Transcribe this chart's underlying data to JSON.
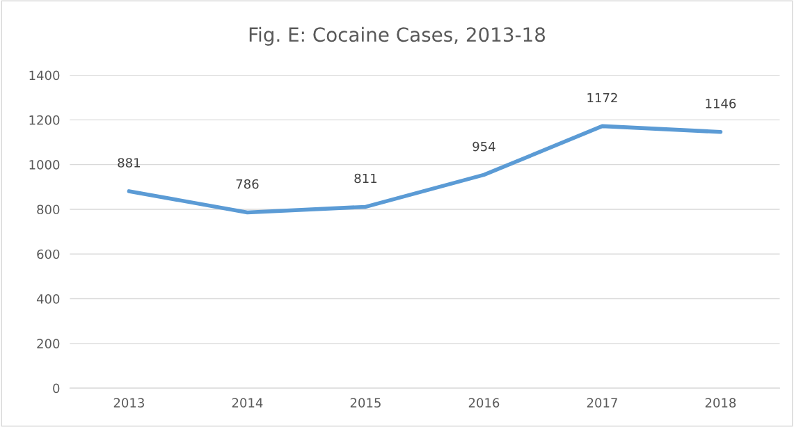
{
  "chart_data": {
    "type": "line",
    "title": "Fig. E: Cocaine Cases, 2013-18",
    "categories": [
      "2013",
      "2014",
      "2015",
      "2016",
      "2017",
      "2018"
    ],
    "series": [
      {
        "color": "#5b9bd5",
        "values": [
          881,
          786,
          811,
          954,
          1172,
          1146
        ]
      }
    ],
    "ylim": [
      0,
      1400
    ],
    "yticks": [
      0,
      200,
      400,
      600,
      800,
      1000,
      1200,
      1400
    ],
    "grid": "y",
    "data_labels": true,
    "marker": "none",
    "line_style": "solid"
  }
}
